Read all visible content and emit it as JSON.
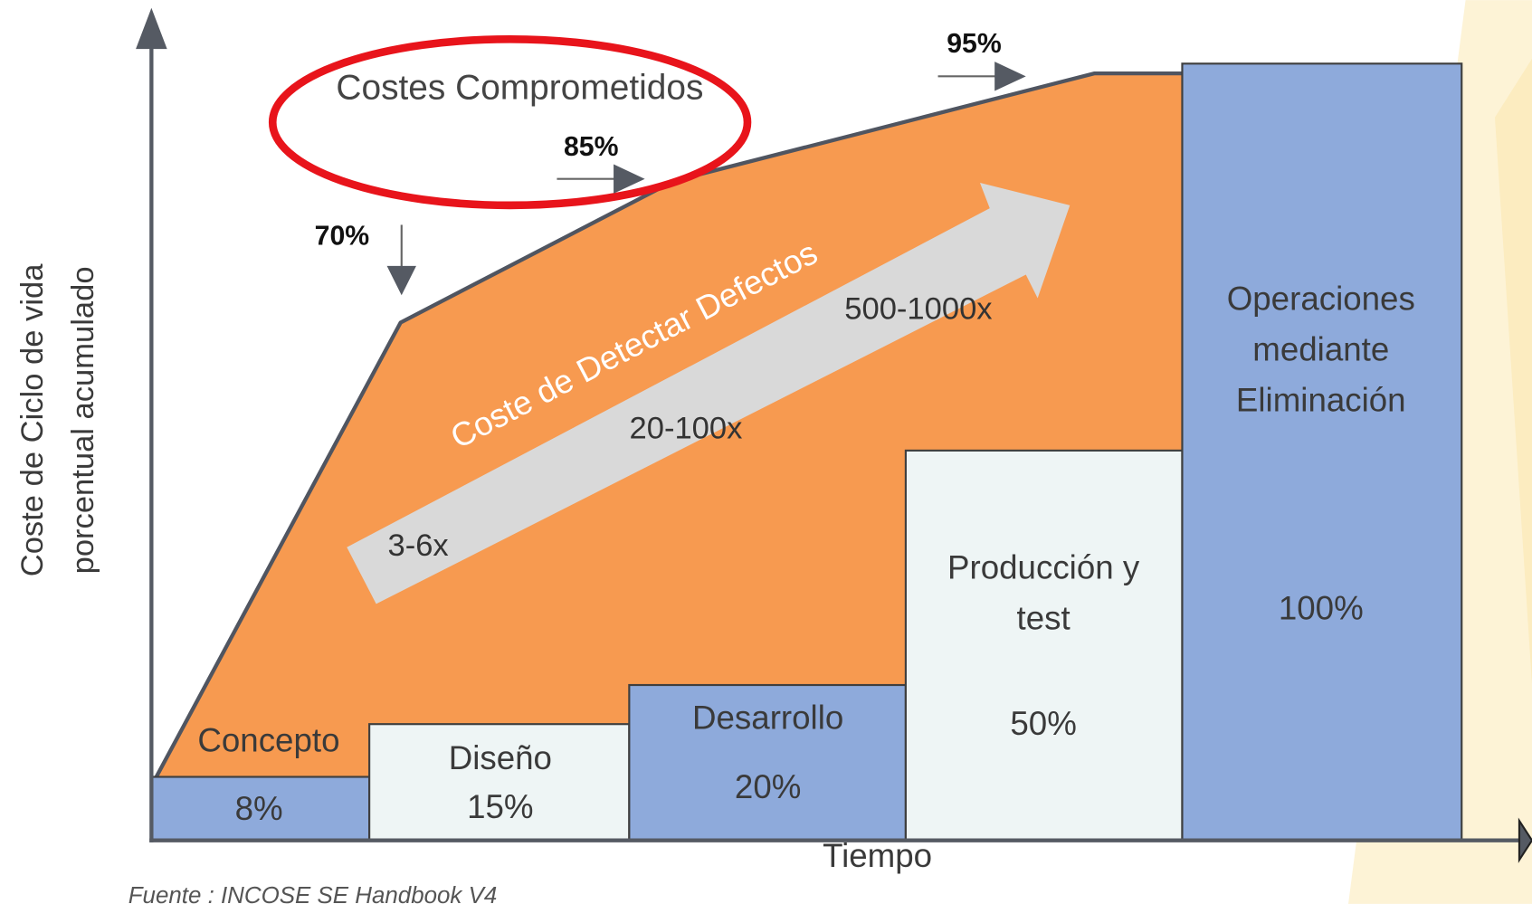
{
  "axes": {
    "y_label": [
      "Coste de Ciclo de vida",
      "porcentual acumulado"
    ],
    "x_label": "Tiempo"
  },
  "source": "Fuente : INCOSE SE Handbook V4",
  "committed_costs": {
    "label": "Costes Comprometidos",
    "markers": [
      "70%",
      "85%",
      "95%"
    ]
  },
  "defect_cost": {
    "label": "Coste de Detectar Defectos",
    "multipliers": [
      "3-6x",
      "20-100x",
      "500-1000x"
    ]
  },
  "phases": [
    {
      "name": [
        "Concepto"
      ],
      "percent": "8%"
    },
    {
      "name": [
        "Diseño"
      ],
      "percent": "15%"
    },
    {
      "name": [
        "Desarrollo"
      ],
      "percent": "20%"
    },
    {
      "name": [
        "Producción y",
        "test"
      ],
      "percent": "50%"
    },
    {
      "name": [
        "Operaciones",
        "mediante",
        "Eliminación"
      ],
      "percent": "100%"
    }
  ]
}
